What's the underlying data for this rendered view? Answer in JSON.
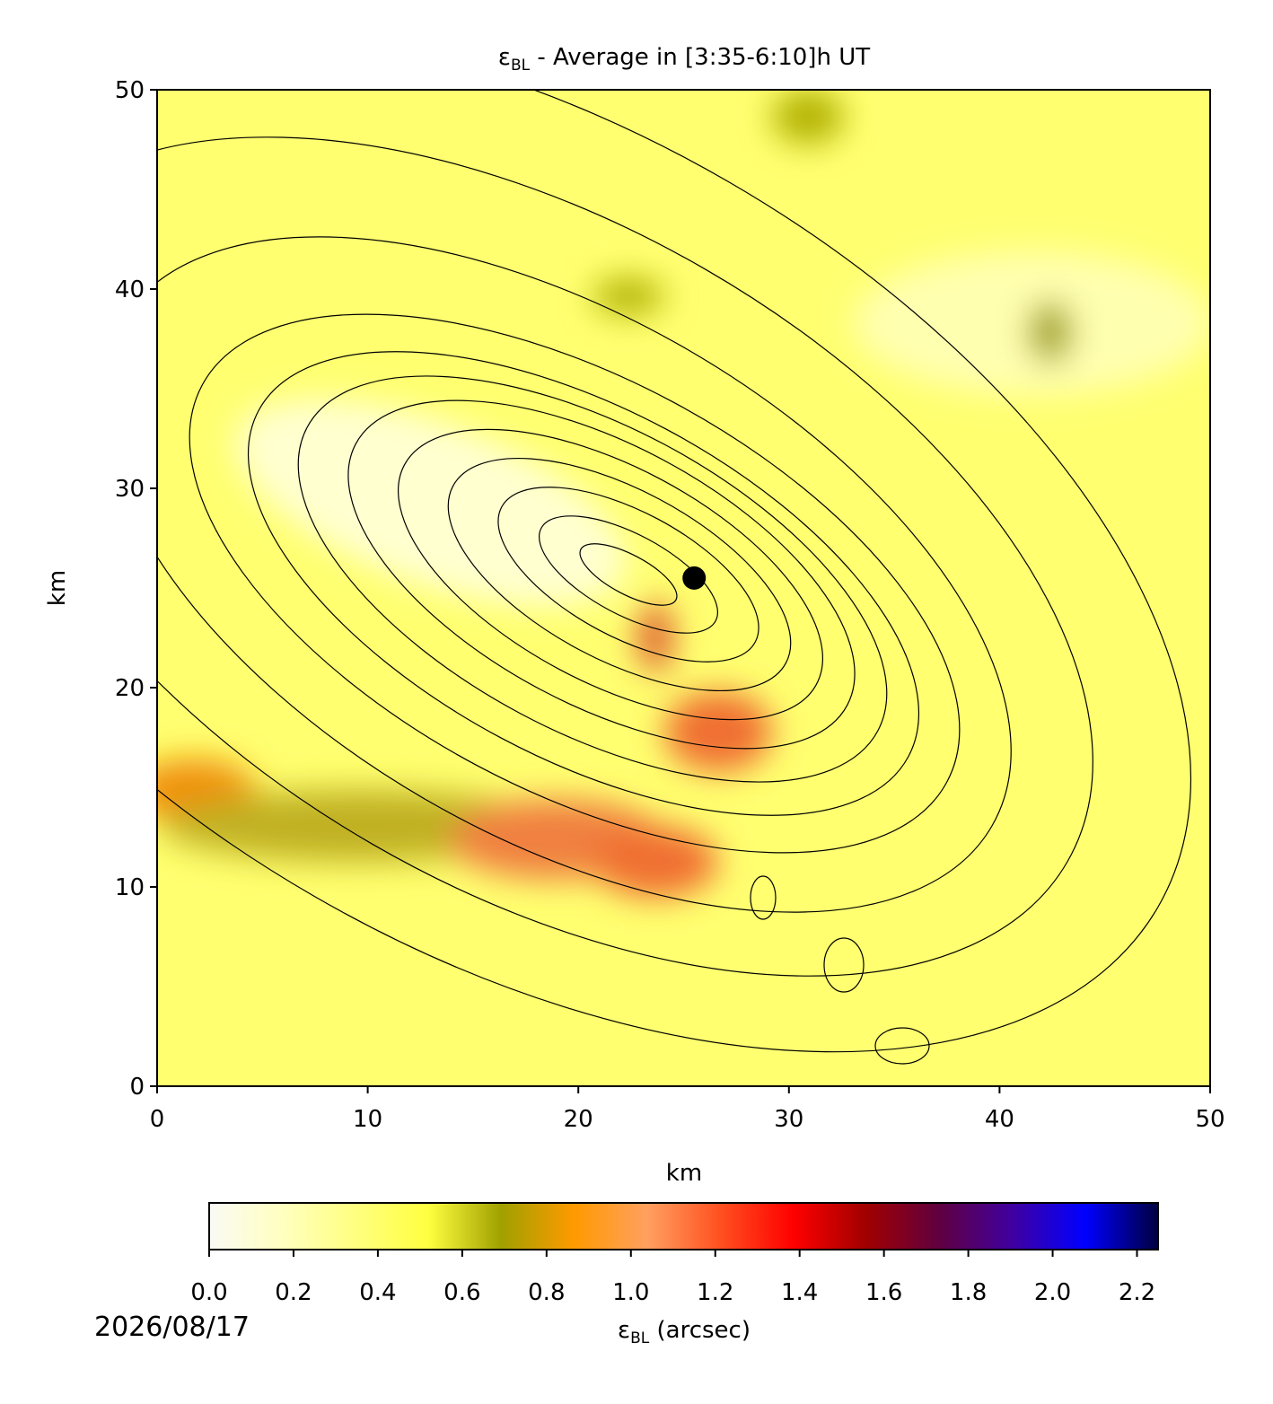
{
  "chart_data": {
    "type": "heatmap",
    "title": {
      "symbol": "ε",
      "subscript": "BL",
      "text": " - Average in [3:35-6:10]h UT"
    },
    "x_label": "km",
    "y_label": "km",
    "xlim": [
      0,
      50
    ],
    "ylim": [
      0,
      50
    ],
    "xticks": [
      0,
      10,
      20,
      30,
      40,
      50
    ],
    "yticks": [
      0,
      10,
      20,
      30,
      40,
      50
    ],
    "marker": {
      "x": 25.5,
      "y": 25.5,
      "color": "#000000"
    },
    "colorbar": {
      "label": {
        "symbol": "ε",
        "subscript": "BL",
        "text": " (arcsec)"
      },
      "lim": [
        0,
        2.25
      ],
      "ticks": [
        {
          "value": 0,
          "label": "0.0"
        },
        {
          "value": 0.2,
          "label": "0.2"
        },
        {
          "value": 0.4,
          "label": "0.4"
        },
        {
          "value": 0.6,
          "label": "0.6"
        },
        {
          "value": 0.8,
          "label": "0.8"
        },
        {
          "value": 1,
          "label": "1.0"
        },
        {
          "value": 1.2,
          "label": "1.2"
        },
        {
          "value": 1.4,
          "label": "1.4"
        },
        {
          "value": 1.6,
          "label": "1.6"
        },
        {
          "value": 1.8,
          "label": "1.8"
        },
        {
          "value": 2,
          "label": "2.0"
        },
        {
          "value": 2.2,
          "label": "2.2"
        }
      ],
      "colors": [
        "#fafaf5",
        "#ffffc0",
        "#ffff80",
        "#ffff40",
        "#a0a000",
        "#ff9a00",
        "#ffa060",
        "#ff5020",
        "#ff0000",
        "#a00000",
        "#600040",
        "#4000a0",
        "#0000ff",
        "#000040"
      ]
    },
    "date": "2026/08/17"
  }
}
